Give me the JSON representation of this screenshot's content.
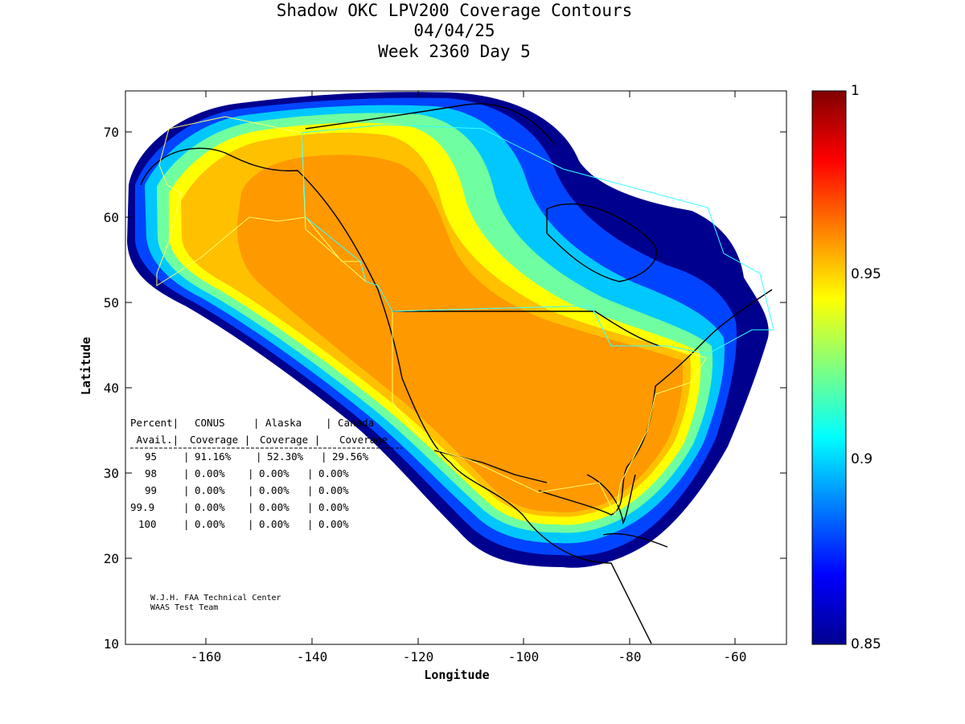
{
  "title": {
    "line1": "Shadow OKC LPV200 Coverage Contours",
    "line2": "04/04/25",
    "line3": "Week 2360 Day 5"
  },
  "axes": {
    "xlabel": "Longitude",
    "ylabel": "Latitude",
    "x_ticks": [
      "-160",
      "-140",
      "-120",
      "-100",
      "-80",
      "-60"
    ],
    "y_ticks": [
      "70",
      "60",
      "50",
      "40",
      "30",
      "20",
      "10"
    ],
    "xlim": [
      -175,
      -50
    ],
    "ylim": [
      10,
      75
    ]
  },
  "colorbar": {
    "labels": [
      "1",
      "0.95",
      "0.9",
      "0.85"
    ],
    "range": [
      0.85,
      1
    ],
    "colormap": "jet"
  },
  "table": {
    "header1": [
      "Percent|",
      "CONUS",
      "| Alaska",
      "| Canada"
    ],
    "header2": [
      " Avail.|",
      "Coverage |",
      "Coverage |",
      "Coverage"
    ],
    "rows": [
      {
        "avail": "95",
        "conus": "91.16%",
        "alaska": "52.30%",
        "canada": "29.56%"
      },
      {
        "avail": "98",
        "conus": "0.00%",
        "alaska": "0.00%",
        "canada": "0.00%"
      },
      {
        "avail": "99",
        "conus": "0.00%",
        "alaska": "0.00%",
        "canada": "0.00%"
      },
      {
        "avail": "99.9",
        "conus": "0.00%",
        "alaska": "0.00%",
        "canada": "0.00%"
      },
      {
        "avail": "100",
        "conus": "0.00%",
        "alaska": "0.00%",
        "canada": "0.00%"
      }
    ]
  },
  "credit": {
    "line1": "W.J.H. FAA Technical Center",
    "line2": "WAAS Test Team"
  },
  "colors": {
    "dark_blue": "#00008f",
    "blue": "#0030ff",
    "cyan": "#00c0ff",
    "green": "#60ffa0",
    "yellow": "#ffff00",
    "gold": "#ffc000",
    "orange": "#ff9900"
  }
}
